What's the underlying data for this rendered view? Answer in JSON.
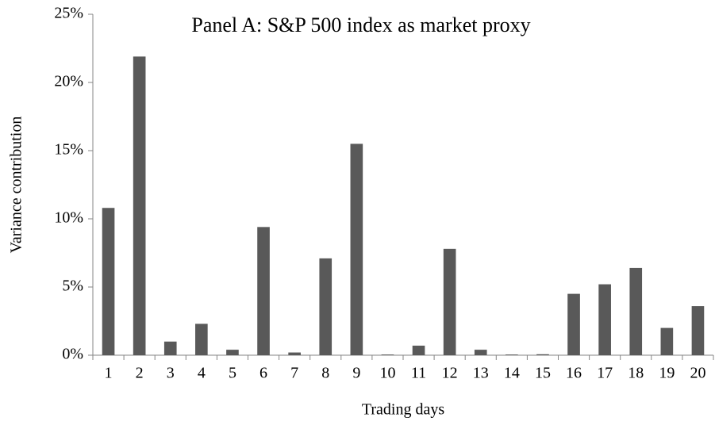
{
  "chart_data": {
    "type": "bar",
    "title": "Panel A: S&P 500 index as market proxy",
    "x_label": "Trading days",
    "y_label": "Variance contribution",
    "categories": [
      "1",
      "2",
      "3",
      "4",
      "5",
      "6",
      "7",
      "8",
      "9",
      "10",
      "11",
      "12",
      "13",
      "14",
      "15",
      "16",
      "17",
      "18",
      "19",
      "20"
    ],
    "values": [
      10.8,
      21.9,
      1.0,
      2.3,
      0.4,
      9.4,
      0.2,
      7.1,
      15.5,
      0.05,
      0.7,
      7.8,
      0.4,
      0.05,
      0.07,
      4.5,
      5.2,
      6.4,
      2.0,
      3.6
    ],
    "color": "#595959",
    "ylim": [
      0,
      25
    ],
    "yticks": [
      {
        "value": 0,
        "label": "0%"
      },
      {
        "value": 5,
        "label": "5%"
      },
      {
        "value": 10,
        "label": "10%"
      },
      {
        "value": 15,
        "label": "15%"
      },
      {
        "value": 20,
        "label": "20%"
      },
      {
        "value": 25,
        "label": "25%"
      }
    ],
    "grid": false
  }
}
